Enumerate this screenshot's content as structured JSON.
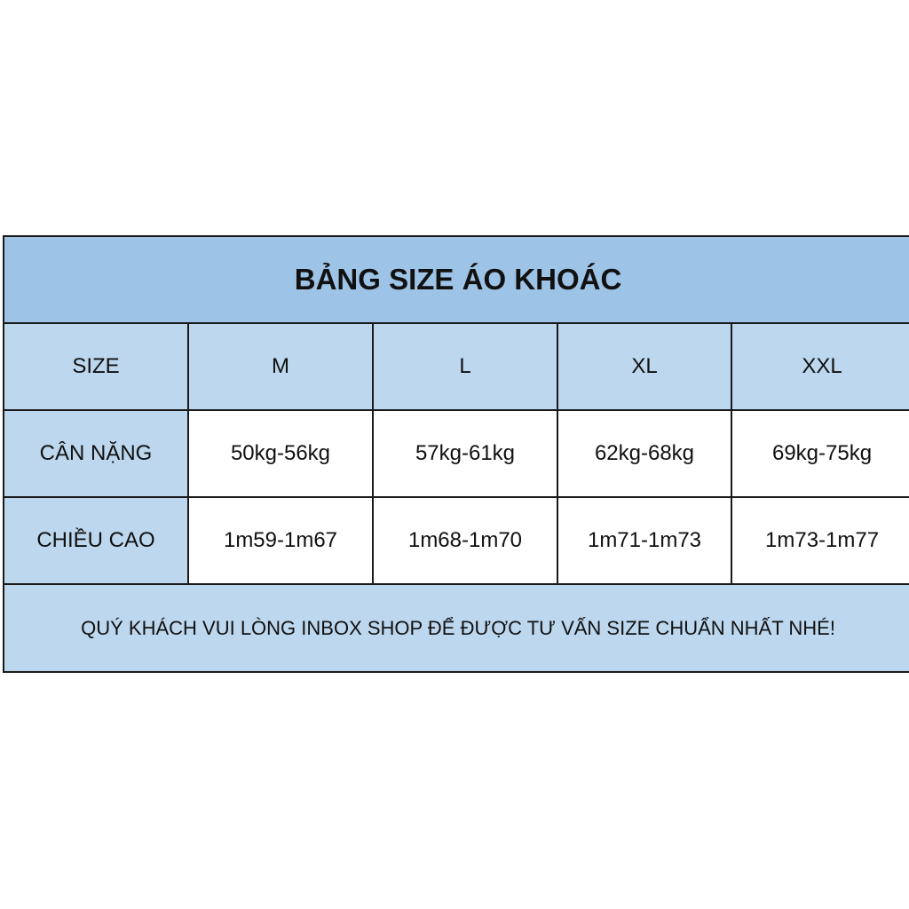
{
  "title": "BẢNG SIZE ÁO KHOÁC",
  "header": [
    "SIZE",
    "M",
    "L",
    "XL",
    "XXL"
  ],
  "rows": [
    {
      "label": "CÂN NẶNG",
      "values": [
        "50kg-56kg",
        "57kg-61kg",
        "62kg-68kg",
        "69kg-75kg"
      ]
    },
    {
      "label": "CHIỀU CAO",
      "values": [
        "1m59-1m67",
        "1m68-1m70",
        "1m71-1m73",
        "1m73-1m77"
      ]
    }
  ],
  "footer": "QUÝ KHÁCH VUI LÒNG INBOX SHOP ĐỂ ĐƯỢC TƯ VẤN SIZE CHUẨN NHẤT NHÉ!",
  "colors": {
    "title_bg": "#9dc3e6",
    "header_bg": "#bdd7ee",
    "cell_bg": "#ffffff",
    "border": "#1a1a1a"
  }
}
